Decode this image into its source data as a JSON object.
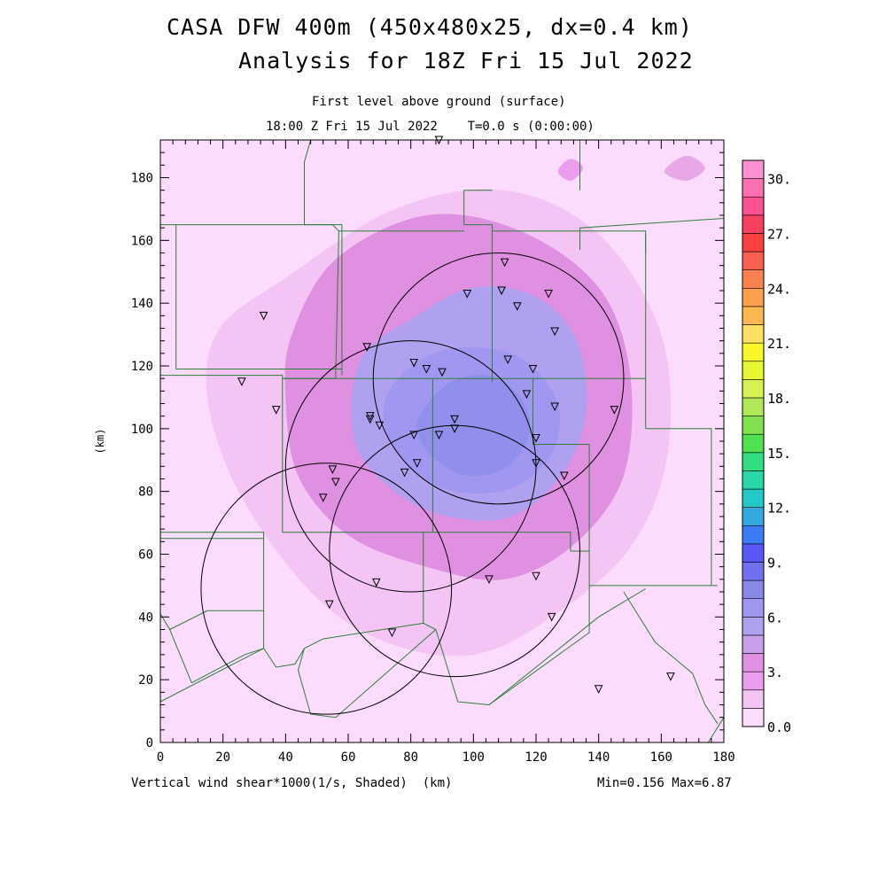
{
  "header": {
    "title_line1": "CASA DFW 400m (450x480x25, dx=0.4 km)",
    "title_line2": "Analysis for 18Z Fri 15 Jul 2022",
    "subtitle_line1": "First level above ground (surface)",
    "subtitle_line2": "18:00 Z Fri 15 Jul 2022    T=0.0 s (0:00:00)"
  },
  "footer": {
    "field_label": "Vertical wind shear*1000(1/s, Shaded)  (km)",
    "stats": "Min=0.156 Max=6.87"
  },
  "chart_data": {
    "type": "heatmap",
    "title": "CASA DFW 400m (450x480x25, dx=0.4 km)",
    "field": "Vertical wind shear*1000(1/s, Shaded)",
    "xlabel": "(km)",
    "ylabel": "(km)",
    "xlim": [
      0,
      180
    ],
    "ylim": [
      0,
      192
    ],
    "xticks": [
      0,
      20,
      40,
      60,
      80,
      100,
      120,
      140,
      160,
      180
    ],
    "yticks": [
      0,
      20,
      40,
      60,
      80,
      100,
      120,
      140,
      160,
      180
    ],
    "min": 0.156,
    "max": 6.87,
    "colorbar": {
      "labels": [
        "0.0",
        "3.",
        "6.",
        "9.",
        "12.",
        "15.",
        "18.",
        "21.",
        "24.",
        "27.",
        "30."
      ],
      "colors": [
        "#fcdcfc",
        "#f4c4f4",
        "#ec9cec",
        "#e090e0",
        "#c8a0e8",
        "#b0a0f0",
        "#a098f0",
        "#8888e8",
        "#7070f0",
        "#5858f8",
        "#3c7cf8",
        "#34a8e0",
        "#24c8c8",
        "#28d8a8",
        "#30e080",
        "#50e050",
        "#80e050",
        "#b0e858",
        "#d8f050",
        "#e8f830",
        "#f8f828",
        "#fce060",
        "#fcb850",
        "#fca050",
        "#fc8050",
        "#f86050",
        "#fc4040",
        "#f84060",
        "#fc5090",
        "#fc70b0",
        "#fc90d0"
      ]
    },
    "shear_contours": [
      {
        "level": 1.5,
        "color": "#f4c4f4",
        "points": [
          [
            19,
            132
          ],
          [
            40,
            148
          ],
          [
            75,
            170
          ],
          [
            110,
            176
          ],
          [
            140,
            162
          ],
          [
            160,
            130
          ],
          [
            162,
            92
          ],
          [
            150,
            62
          ],
          [
            125,
            40
          ],
          [
            100,
            28
          ],
          [
            72,
            32
          ],
          [
            48,
            48
          ],
          [
            25,
            80
          ],
          [
            15,
            110
          ]
        ]
      },
      {
        "level": 3.0,
        "color": "#e090e0",
        "points": [
          [
            42,
            130
          ],
          [
            56,
            154
          ],
          [
            85,
            168
          ],
          [
            115,
            163
          ],
          [
            140,
            145
          ],
          [
            150,
            118
          ],
          [
            148,
            85
          ],
          [
            132,
            63
          ],
          [
            110,
            52
          ],
          [
            85,
            56
          ],
          [
            60,
            66
          ],
          [
            44,
            85
          ],
          [
            40,
            110
          ]
        ]
      },
      {
        "level": 4.5,
        "color": "#b0a0f0",
        "points": [
          [
            64,
            122
          ],
          [
            82,
            136
          ],
          [
            100,
            145
          ],
          [
            120,
            142
          ],
          [
            133,
            128
          ],
          [
            136,
            105
          ],
          [
            128,
            85
          ],
          [
            112,
            72
          ],
          [
            92,
            72
          ],
          [
            75,
            80
          ],
          [
            62,
            96
          ]
        ]
      },
      {
        "level": 5.5,
        "color": "#a098f0",
        "points": [
          [
            73,
            112
          ],
          [
            85,
            123
          ],
          [
            100,
            126
          ],
          [
            116,
            122
          ],
          [
            127,
            108
          ],
          [
            125,
            92
          ],
          [
            112,
            81
          ],
          [
            94,
            80
          ],
          [
            80,
            87
          ],
          [
            72,
            100
          ]
        ]
      },
      {
        "level": 6.2,
        "color": "#9090ec",
        "points": [
          [
            84,
            106
          ],
          [
            93,
            115
          ],
          [
            105,
            117
          ],
          [
            115,
            110
          ],
          [
            118,
            99
          ],
          [
            111,
            88
          ],
          [
            98,
            85
          ],
          [
            87,
            91
          ],
          [
            82,
            99
          ]
        ]
      },
      {
        "level": 3.0,
        "color": "#ec9cec",
        "points": [
          [
            127,
            182
          ],
          [
            131,
            186
          ],
          [
            135,
            183
          ],
          [
            131,
            179
          ]
        ]
      },
      {
        "level": 1.5,
        "color": "#e8a8e8",
        "points": [
          [
            161,
            182
          ],
          [
            168,
            187
          ],
          [
            174,
            183
          ],
          [
            168,
            179
          ]
        ]
      }
    ],
    "radar_range_circles": [
      {
        "center": [
          108,
          116
        ],
        "radius_km": 40
      },
      {
        "center": [
          80,
          88
        ],
        "radius_km": 40
      },
      {
        "center": [
          53,
          49
        ],
        "radius_km": 40
      },
      {
        "center": [
          94,
          61
        ],
        "radius_km": 40
      }
    ],
    "station_markers": [
      [
        89,
        192
      ],
      [
        110,
        153
      ],
      [
        98,
        143
      ],
      [
        109,
        144
      ],
      [
        114,
        139
      ],
      [
        124,
        143
      ],
      [
        126,
        131
      ],
      [
        33,
        136
      ],
      [
        66,
        126
      ],
      [
        81,
        121
      ],
      [
        85,
        119
      ],
      [
        90,
        118
      ],
      [
        111,
        122
      ],
      [
        119,
        119
      ],
      [
        117,
        111
      ],
      [
        26,
        115
      ],
      [
        37,
        106
      ],
      [
        67,
        104
      ],
      [
        67,
        103
      ],
      [
        70,
        101
      ],
      [
        94,
        103
      ],
      [
        94,
        100
      ],
      [
        89,
        98
      ],
      [
        81,
        98
      ],
      [
        126,
        107
      ],
      [
        145,
        106
      ],
      [
        120,
        97
      ],
      [
        120,
        89
      ],
      [
        129,
        85
      ],
      [
        55,
        87
      ],
      [
        56,
        83
      ],
      [
        52,
        78
      ],
      [
        78,
        86
      ],
      [
        82,
        89
      ],
      [
        69,
        51
      ],
      [
        105,
        52
      ],
      [
        120,
        53
      ],
      [
        54,
        44
      ],
      [
        74,
        35
      ],
      [
        125,
        40
      ],
      [
        140,
        17
      ],
      [
        163,
        21
      ]
    ],
    "county_boundaries": [
      [
        [
          0,
          165
        ],
        [
          5,
          165
        ],
        [
          5,
          119
        ]
      ],
      [
        [
          0,
          117
        ],
        [
          39,
          117
        ],
        [
          39,
          67
        ]
      ],
      [
        [
          0,
          67
        ],
        [
          33,
          67
        ],
        [
          33,
          30
        ],
        [
          27,
          28
        ],
        [
          10,
          19
        ]
      ],
      [
        [
          0,
          65
        ],
        [
          33,
          65
        ]
      ],
      [
        [
          0,
          13
        ],
        [
          33,
          30
        ]
      ],
      [
        [
          0,
          41
        ],
        [
          3,
          36
        ],
        [
          10,
          19
        ]
      ],
      [
        [
          33,
          42
        ],
        [
          15,
          42
        ],
        [
          3,
          36
        ]
      ],
      [
        [
          5,
          165
        ],
        [
          58,
          165
        ],
        [
          58,
          117
        ]
      ],
      [
        [
          5,
          119
        ],
        [
          58,
          119
        ]
      ],
      [
        [
          46,
          165
        ],
        [
          46,
          185
        ],
        [
          48,
          192
        ]
      ],
      [
        [
          46,
          165
        ],
        [
          55,
          165
        ],
        [
          57,
          163
        ],
        [
          97,
          163
        ]
      ],
      [
        [
          57,
          163
        ],
        [
          56,
          118
        ],
        [
          56,
          116
        ],
        [
          39,
          116
        ]
      ],
      [
        [
          39,
          116
        ],
        [
          87,
          116
        ],
        [
          87,
          67
        ]
      ],
      [
        [
          39,
          67
        ],
        [
          84,
          67
        ],
        [
          84,
          38
        ],
        [
          88,
          36
        ]
      ],
      [
        [
          84,
          67
        ],
        [
          131,
          67
        ],
        [
          131,
          61
        ]
      ],
      [
        [
          87,
          116
        ],
        [
          119,
          116
        ],
        [
          119,
          95
        ],
        [
          131,
          95
        ]
      ],
      [
        [
          119,
          116
        ],
        [
          155,
          116
        ],
        [
          155,
          100
        ]
      ],
      [
        [
          106,
          176
        ],
        [
          97,
          176
        ],
        [
          97,
          165
        ],
        [
          106,
          165
        ]
      ],
      [
        [
          106,
          165
        ],
        [
          106,
          115
        ]
      ],
      [
        [
          106,
          163
        ],
        [
          131,
          163
        ],
        [
          155,
          163
        ],
        [
          155,
          116
        ]
      ],
      [
        [
          134,
          176
        ],
        [
          134,
          192
        ]
      ],
      [
        [
          134,
          157
        ],
        [
          134,
          164
        ],
        [
          180,
          167
        ]
      ],
      [
        [
          155,
          156
        ],
        [
          155,
          162
        ]
      ],
      [
        [
          131,
          95
        ],
        [
          137,
          95
        ],
        [
          137,
          61
        ]
      ],
      [
        [
          131,
          61
        ],
        [
          137,
          61
        ],
        [
          137,
          35
        ],
        [
          105,
          12
        ]
      ],
      [
        [
          155,
          100
        ],
        [
          176,
          100
        ],
        [
          176,
          50
        ],
        [
          178,
          50
        ]
      ],
      [
        [
          137,
          50
        ],
        [
          176,
          50
        ]
      ],
      [
        [
          33,
          30
        ],
        [
          37,
          24
        ],
        [
          43,
          25
        ],
        [
          46,
          30
        ],
        [
          52,
          33
        ],
        [
          84,
          38
        ]
      ],
      [
        [
          46,
          30
        ],
        [
          44,
          23
        ],
        [
          48,
          9
        ],
        [
          56,
          8
        ],
        [
          88,
          36
        ]
      ],
      [
        [
          88,
          36
        ],
        [
          95,
          13
        ],
        [
          105,
          12
        ]
      ],
      [
        [
          105,
          12
        ],
        [
          140,
          40
        ],
        [
          145,
          43
        ],
        [
          155,
          49
        ]
      ],
      [
        [
          148,
          48
        ],
        [
          158,
          32
        ],
        [
          170,
          22
        ],
        [
          174,
          12
        ],
        [
          178,
          6
        ]
      ],
      [
        [
          180,
          8
        ],
        [
          175,
          0
        ]
      ]
    ]
  }
}
